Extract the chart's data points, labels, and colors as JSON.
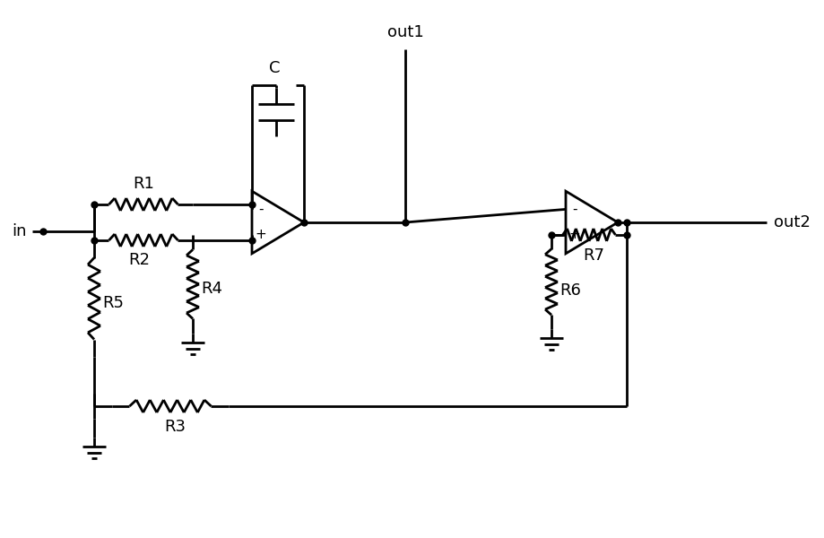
{
  "bg_color": "#ffffff",
  "line_color": "#000000",
  "line_width": 2.0,
  "dot_size": 5,
  "labels": {
    "in": "in",
    "out1": "out1",
    "out2": "out2",
    "R1": "R1",
    "R2": "R2",
    "R3": "R3",
    "R4": "R4",
    "R5": "R5",
    "R6": "R6",
    "R7": "R7",
    "C": "C"
  },
  "font_size": 13
}
